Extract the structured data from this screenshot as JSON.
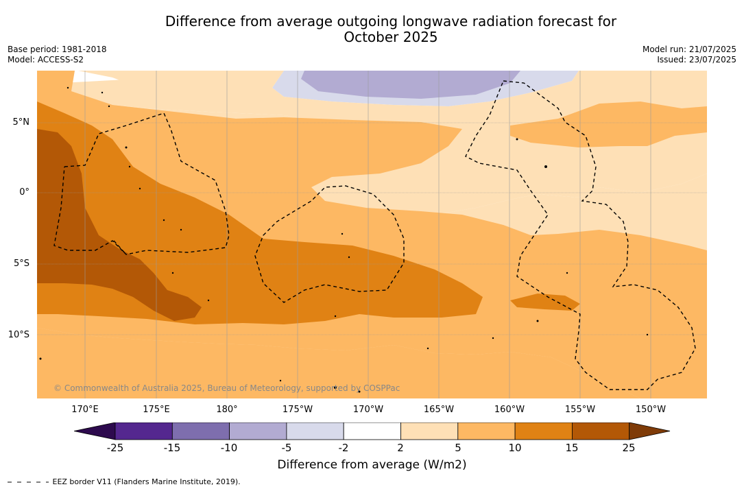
{
  "title": {
    "line1": "Difference from average outgoing longwave radiation forecast for",
    "line2": "October 2025"
  },
  "meta": {
    "base_period": "Base period: 1981-2018",
    "model": "Model: ACCESS-S2",
    "model_run": "Model run: 21/07/2025",
    "issued": "Issued: 23/07/2025"
  },
  "lat_labels": [
    "5°N",
    "0°",
    "5°S",
    "10°S"
  ],
  "lon_labels": [
    "170°E",
    "175°E",
    "180°",
    "175°W",
    "170°W",
    "165°W",
    "160°W",
    "155°W",
    "150°W"
  ],
  "copyright": "© Commonwealth of Australia 2025, Bureau of Meteorology, supported by COSPPac",
  "colorbar": {
    "ticks": [
      "-25",
      "-15",
      "-10",
      "-5",
      "-2",
      "2",
      "5",
      "10",
      "15",
      "25"
    ],
    "colors": {
      "below_-25": "#2d0a4e",
      "-25_-15": "#54278f",
      "-15_-10": "#7e6eae",
      "-10_-5": "#b2abd2",
      "-5_-2": "#d8daeb",
      "-2_2": "#ffffff",
      "2_5": "#fee0b6",
      "5_10": "#fdb863",
      "10_15": "#e08214",
      "15_25": "#b35806",
      "above_25": "#7f3b08"
    },
    "label": "Difference from average (W/m2)"
  },
  "legend": {
    "eez": "EEZ border V11 (Flanders Marine Institute, 2019)."
  }
}
